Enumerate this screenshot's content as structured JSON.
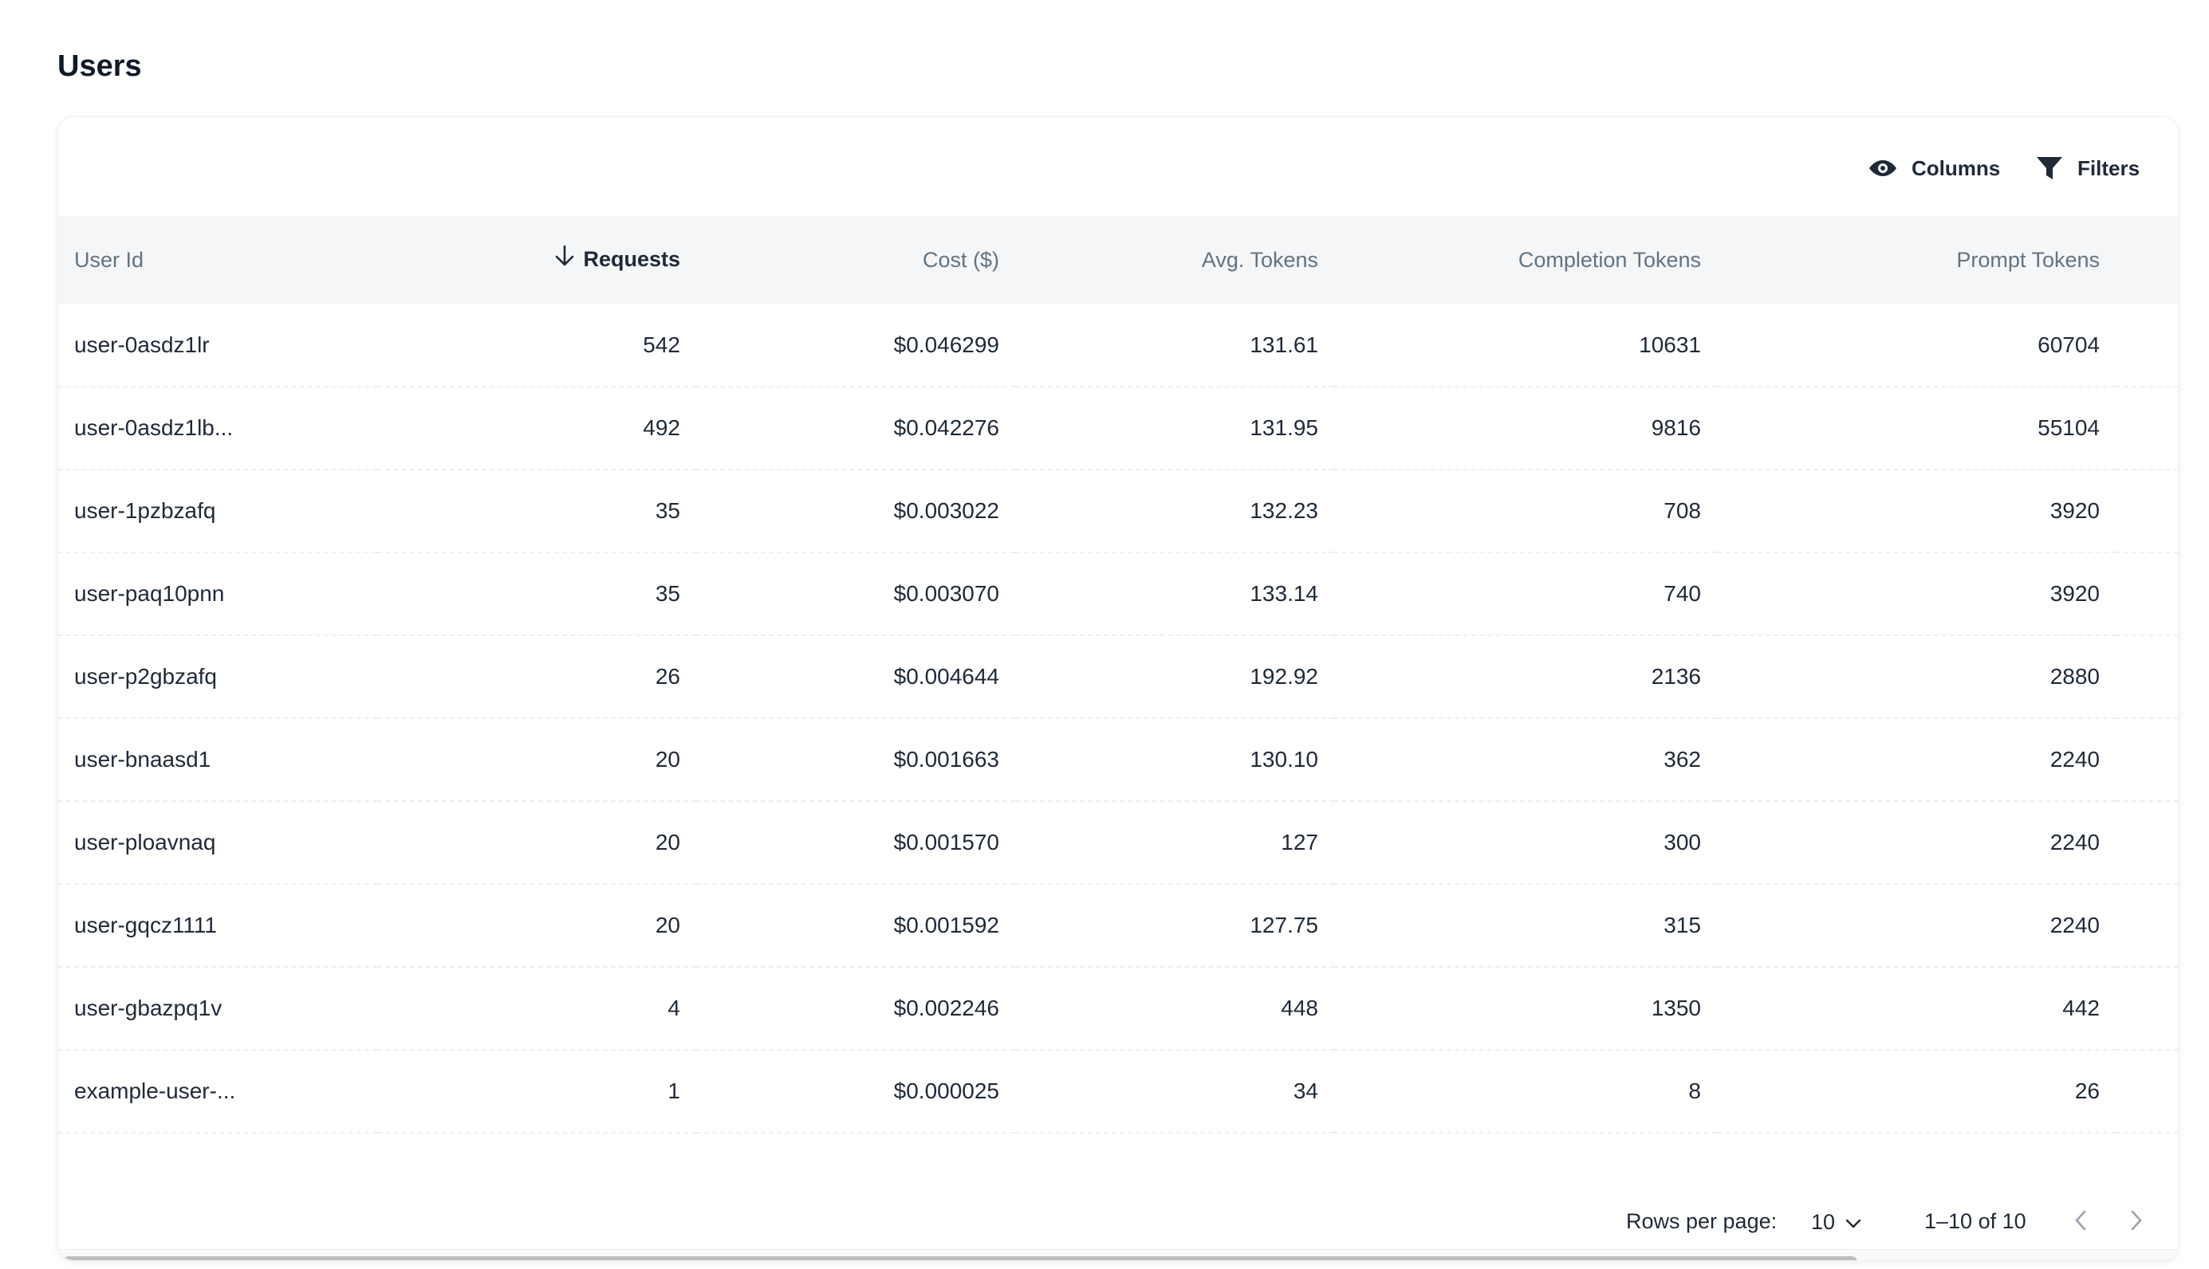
{
  "page": {
    "title": "Users"
  },
  "toolbar": {
    "columns_label": "Columns",
    "filters_label": "Filters",
    "columns_icon": "eye-icon",
    "filters_icon": "filter-icon"
  },
  "table": {
    "columns": [
      {
        "label": "User Id",
        "align": "left"
      },
      {
        "label": "Requests",
        "align": "right",
        "sorted": "desc"
      },
      {
        "label": "Cost ($)",
        "align": "right"
      },
      {
        "label": "Avg. Tokens",
        "align": "right"
      },
      {
        "label": "Completion Tokens",
        "align": "right"
      },
      {
        "label": "Prompt Tokens",
        "align": "right"
      }
    ],
    "rows": [
      [
        "user-0asdz1lr",
        "542",
        "$0.046299",
        "131.61",
        "10631",
        "60704"
      ],
      [
        "user-0asdz1lb...",
        "492",
        "$0.042276",
        "131.95",
        "9816",
        "55104"
      ],
      [
        "user-1pzbzafq",
        "35",
        "$0.003022",
        "132.23",
        "708",
        "3920"
      ],
      [
        "user-paq10pnn",
        "35",
        "$0.003070",
        "133.14",
        "740",
        "3920"
      ],
      [
        "user-p2gbzafq",
        "26",
        "$0.004644",
        "192.92",
        "2136",
        "2880"
      ],
      [
        "user-bnaasd1",
        "20",
        "$0.001663",
        "130.10",
        "362",
        "2240"
      ],
      [
        "user-ploavnaq",
        "20",
        "$0.001570",
        "127",
        "300",
        "2240"
      ],
      [
        "user-gqcz1111",
        "20",
        "$0.001592",
        "127.75",
        "315",
        "2240"
      ],
      [
        "user-gbazpq1v",
        "4",
        "$0.002246",
        "448",
        "1350",
        "442"
      ],
      [
        "example-user-...",
        "1",
        "$0.000025",
        "34",
        "8",
        "26"
      ]
    ]
  },
  "pagination": {
    "rows_per_page_label": "Rows per page:",
    "rows_per_page_value": "10",
    "range_text": "1–10 of 10",
    "prev_icon": "chevron-left-icon",
    "next_icon": "chevron-right-icon"
  },
  "colors": {
    "header_bg": "#f4f6f8",
    "header_text": "#637381",
    "body_text": "#1f2937",
    "scroll_thumb": "#bdbdbd"
  }
}
